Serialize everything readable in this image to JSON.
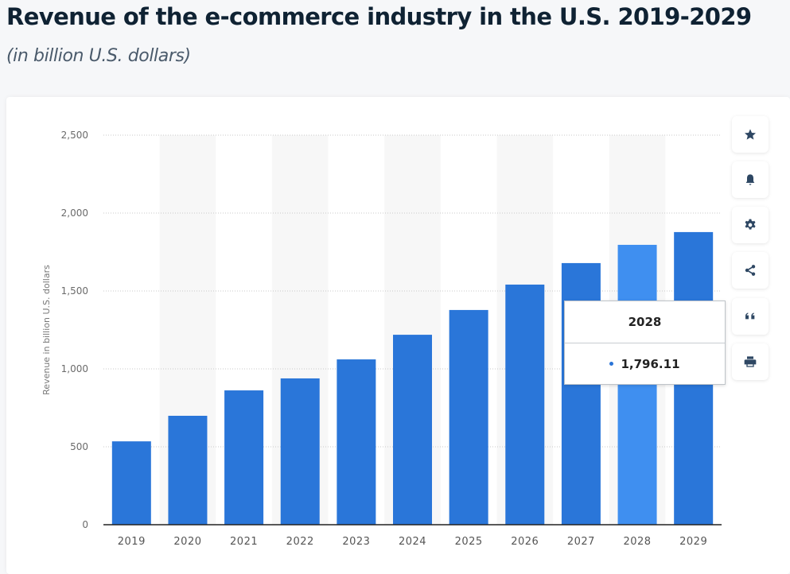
{
  "header": {
    "title": "Revenue of the e-commerce industry in the U.S. 2019-2029",
    "subtitle": "(in billion U.S. dollars)"
  },
  "sidebar": {
    "buttons": [
      {
        "name": "favorite",
        "icon": "star-icon"
      },
      {
        "name": "notification",
        "icon": "bell-icon"
      },
      {
        "name": "settings",
        "icon": "gear-icon"
      },
      {
        "name": "share",
        "icon": "share-icon"
      },
      {
        "name": "cite",
        "icon": "quote-icon"
      },
      {
        "name": "print",
        "icon": "print-icon"
      }
    ]
  },
  "tooltip": {
    "category": "2028",
    "value": "1,796.11"
  },
  "colors": {
    "bar": "#2a76d9",
    "bar_highlight": "#3f8ff0",
    "axis_text": "#6b6b6b",
    "band": "#f7f7f7"
  },
  "chart_data": {
    "type": "bar",
    "title": "Revenue of the e-commerce industry in the U.S. 2019-2029",
    "subtitle": "(in billion U.S. dollars)",
    "xlabel": "",
    "ylabel": "Revenue in billion U.S. dollars",
    "categories": [
      "2019",
      "2020",
      "2021",
      "2022",
      "2023",
      "2024",
      "2025",
      "2026",
      "2027",
      "2028",
      "2029"
    ],
    "values": [
      535,
      699,
      862,
      939,
      1061,
      1219,
      1378,
      1541,
      1679,
      1796.11,
      1878
    ],
    "ylim": [
      0,
      2500
    ],
    "yticks": [
      0,
      500,
      1000,
      1500,
      2000,
      2500
    ],
    "ytick_labels": [
      "0",
      "500",
      "1,000",
      "1,500",
      "2,000",
      "2,500"
    ],
    "grid": true,
    "legend": "none",
    "highlighted_category": "2028"
  }
}
